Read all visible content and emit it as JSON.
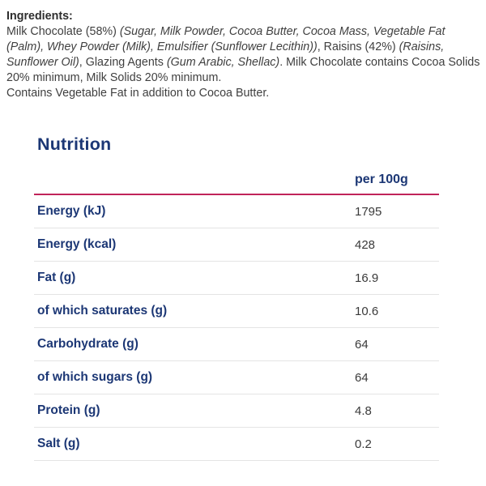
{
  "ingredients": {
    "heading": "Ingredients:",
    "segments": [
      {
        "text": "Milk Chocolate (58%) ",
        "italic": false
      },
      {
        "text": "(Sugar, Milk Powder, Cocoa Butter, Cocoa Mass, Vegetable Fat (Palm), Whey Powder (Milk), Emulsifier (Sunflower Lecithin))",
        "italic": true
      },
      {
        "text": ", Raisins (42%) ",
        "italic": false
      },
      {
        "text": "(Raisins, Sunflower Oil)",
        "italic": true
      },
      {
        "text": ", Glazing Agents ",
        "italic": false
      },
      {
        "text": "(Gum Arabic, Shellac)",
        "italic": true
      },
      {
        "text": ". Milk Chocolate contains Cocoa Solids 20% minimum, Milk Solids 20% minimum.",
        "italic": false
      }
    ],
    "note": "Contains Vegetable Fat in addition to Cocoa Butter."
  },
  "nutrition": {
    "title": "Nutrition",
    "column_header": "per 100g",
    "rows": [
      {
        "label": "Energy (kJ)",
        "value": "1795"
      },
      {
        "label": "Energy (kcal)",
        "value": "428"
      },
      {
        "label": "Fat (g)",
        "value": "16.9"
      },
      {
        "label": "of which saturates (g)",
        "value": "10.6"
      },
      {
        "label": "Carbohydrate (g)",
        "value": "64"
      },
      {
        "label": "of which sugars (g)",
        "value": "64"
      },
      {
        "label": "Protein (g)",
        "value": "4.8"
      },
      {
        "label": "Salt (g)",
        "value": "0.2"
      }
    ]
  },
  "colors": {
    "brand_blue": "#1c3775",
    "accent_red": "#c02359",
    "body_text": "#3f3f3f",
    "separator": "#e4e4e4"
  }
}
